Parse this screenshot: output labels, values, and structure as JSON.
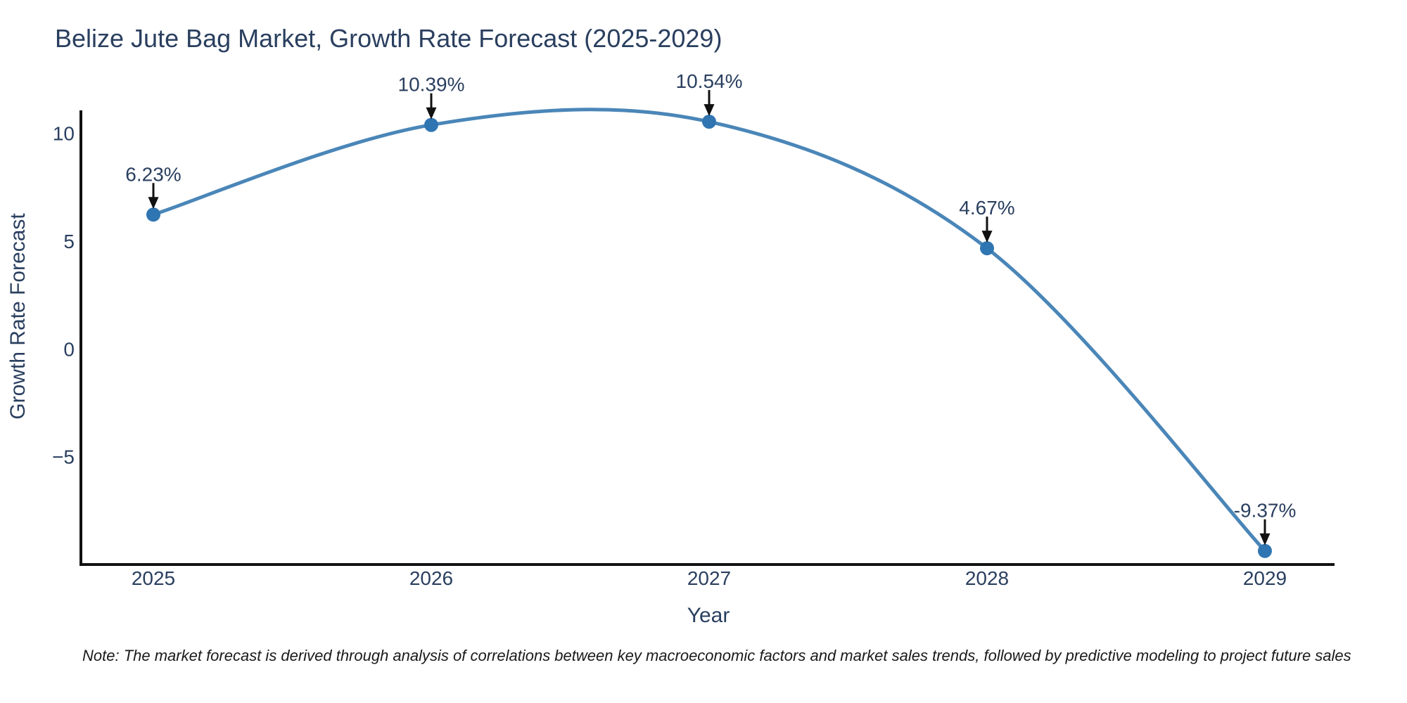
{
  "title": "Belize Jute Bag Market, Growth Rate Forecast (2025-2029)",
  "note": "Note: The market forecast is derived through analysis of correlations between key macroeconomic factors and market sales trends, followed by predictive modeling to project future sales",
  "chart_data": {
    "type": "line",
    "title": "Belize Jute Bag Market, Growth Rate Forecast (2025-2029)",
    "x": [
      2025,
      2026,
      2027,
      2028,
      2029
    ],
    "values": [
      6.23,
      10.39,
      10.54,
      4.67,
      -9.37
    ],
    "data_labels": [
      "6.23%",
      "10.39%",
      "10.54%",
      "4.67%",
      "-9.37%"
    ],
    "x_tick_labels": [
      "2025",
      "2026",
      "2027",
      "2028",
      "2029"
    ],
    "y_ticks": [
      {
        "value": 10,
        "label": "10"
      },
      {
        "value": 5,
        "label": "5"
      },
      {
        "value": 0,
        "label": "0"
      },
      {
        "value": -5,
        "label": "−5"
      }
    ],
    "xlabel": "Year",
    "ylabel": "Growth Rate Forecast",
    "ylim": [
      -10,
      11
    ],
    "line_shape": "spline",
    "grid": false,
    "legend_position": "none",
    "colors": {
      "line": "#4a86b8",
      "marker": "#2f75b2",
      "axis_line": "#111111",
      "arrow": "#111111",
      "tick_text": "#2a3f5f",
      "annotation_text": "#2a3f5f",
      "title_text": "#2a3f5f",
      "background": "#ffffff"
    }
  }
}
